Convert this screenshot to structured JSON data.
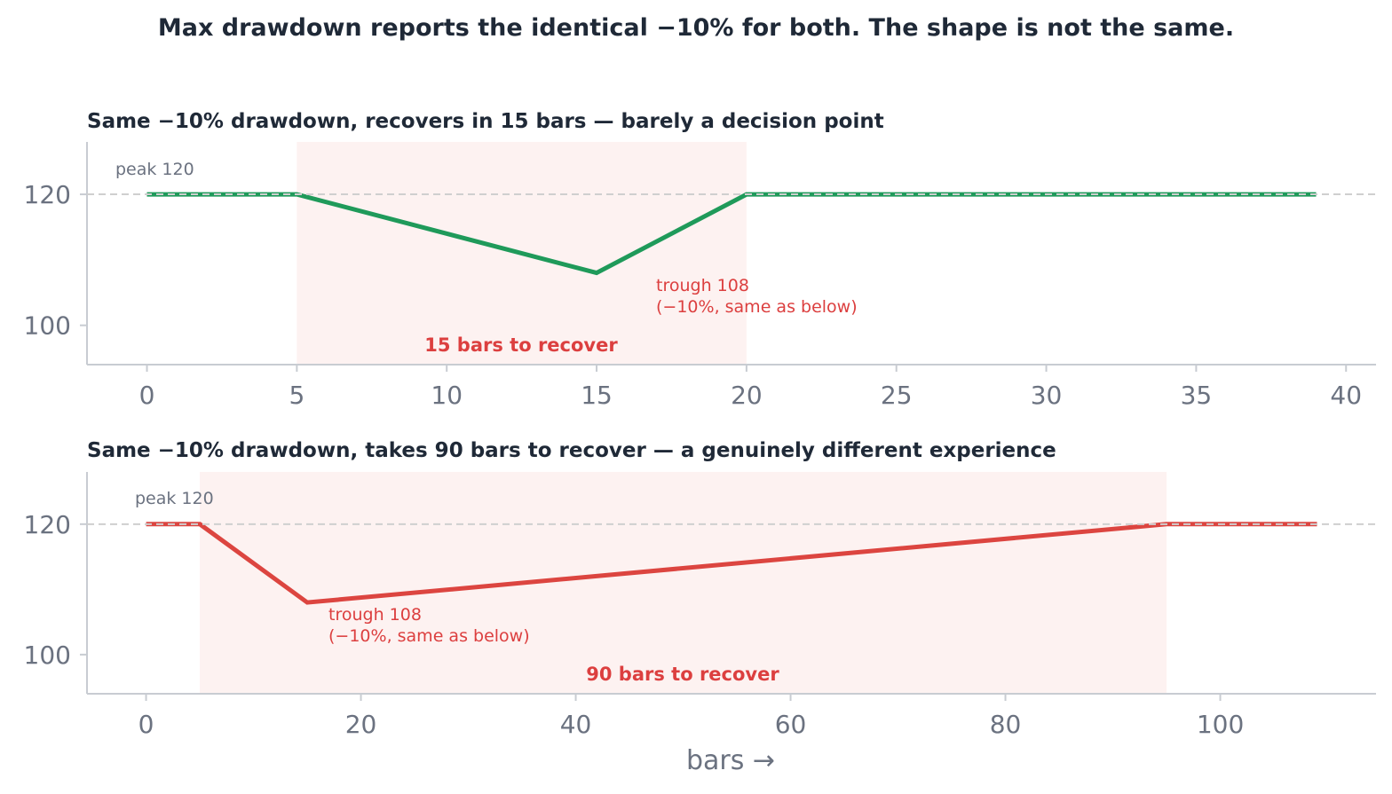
{
  "suptitle": "Max drawdown reports the identical −10% for both. The shape is not the same.",
  "xlabel": "bars →",
  "colors": {
    "fast": "#1f9a5a",
    "slow": "#dc4540",
    "shade": "#fdf2f1",
    "ref": "#cfcfcf",
    "axis": "#c8ccd2"
  },
  "chart_data": [
    {
      "type": "line",
      "title": "Same −10% drawdown, recovers in 15 bars — barely a decision point",
      "x": [
        0,
        5,
        15,
        20,
        39
      ],
      "y": [
        120,
        120,
        108,
        120,
        120
      ],
      "color": "#1f9a5a",
      "xlim": [
        -2,
        41
      ],
      "ylim": [
        94,
        128
      ],
      "xticks": [
        0,
        5,
        10,
        15,
        20,
        25,
        30,
        35,
        40
      ],
      "yticks": [
        100,
        120
      ],
      "reference_line": 120,
      "shaded_span": [
        5,
        20
      ],
      "peak_label": "peak 120",
      "trough_label_1": "trough 108",
      "trough_label_2": "(−10%, same as below)",
      "span_label": "15 bars to recover"
    },
    {
      "type": "line",
      "title": "Same −10% drawdown, takes 90 bars to recover — a genuinely different experience",
      "x": [
        0,
        5,
        15,
        95,
        109
      ],
      "y": [
        120,
        120,
        108,
        120,
        120
      ],
      "color": "#dc4540",
      "xlim": [
        -5.5,
        114.5
      ],
      "ylim": [
        94,
        128
      ],
      "xticks": [
        0,
        20,
        40,
        60,
        80,
        100
      ],
      "yticks": [
        100,
        120
      ],
      "reference_line": 120,
      "shaded_span": [
        5,
        95
      ],
      "peak_label": "peak 120",
      "trough_label_1": "trough 108",
      "trough_label_2": "(−10%, same as below)",
      "span_label": "90 bars to recover"
    }
  ]
}
